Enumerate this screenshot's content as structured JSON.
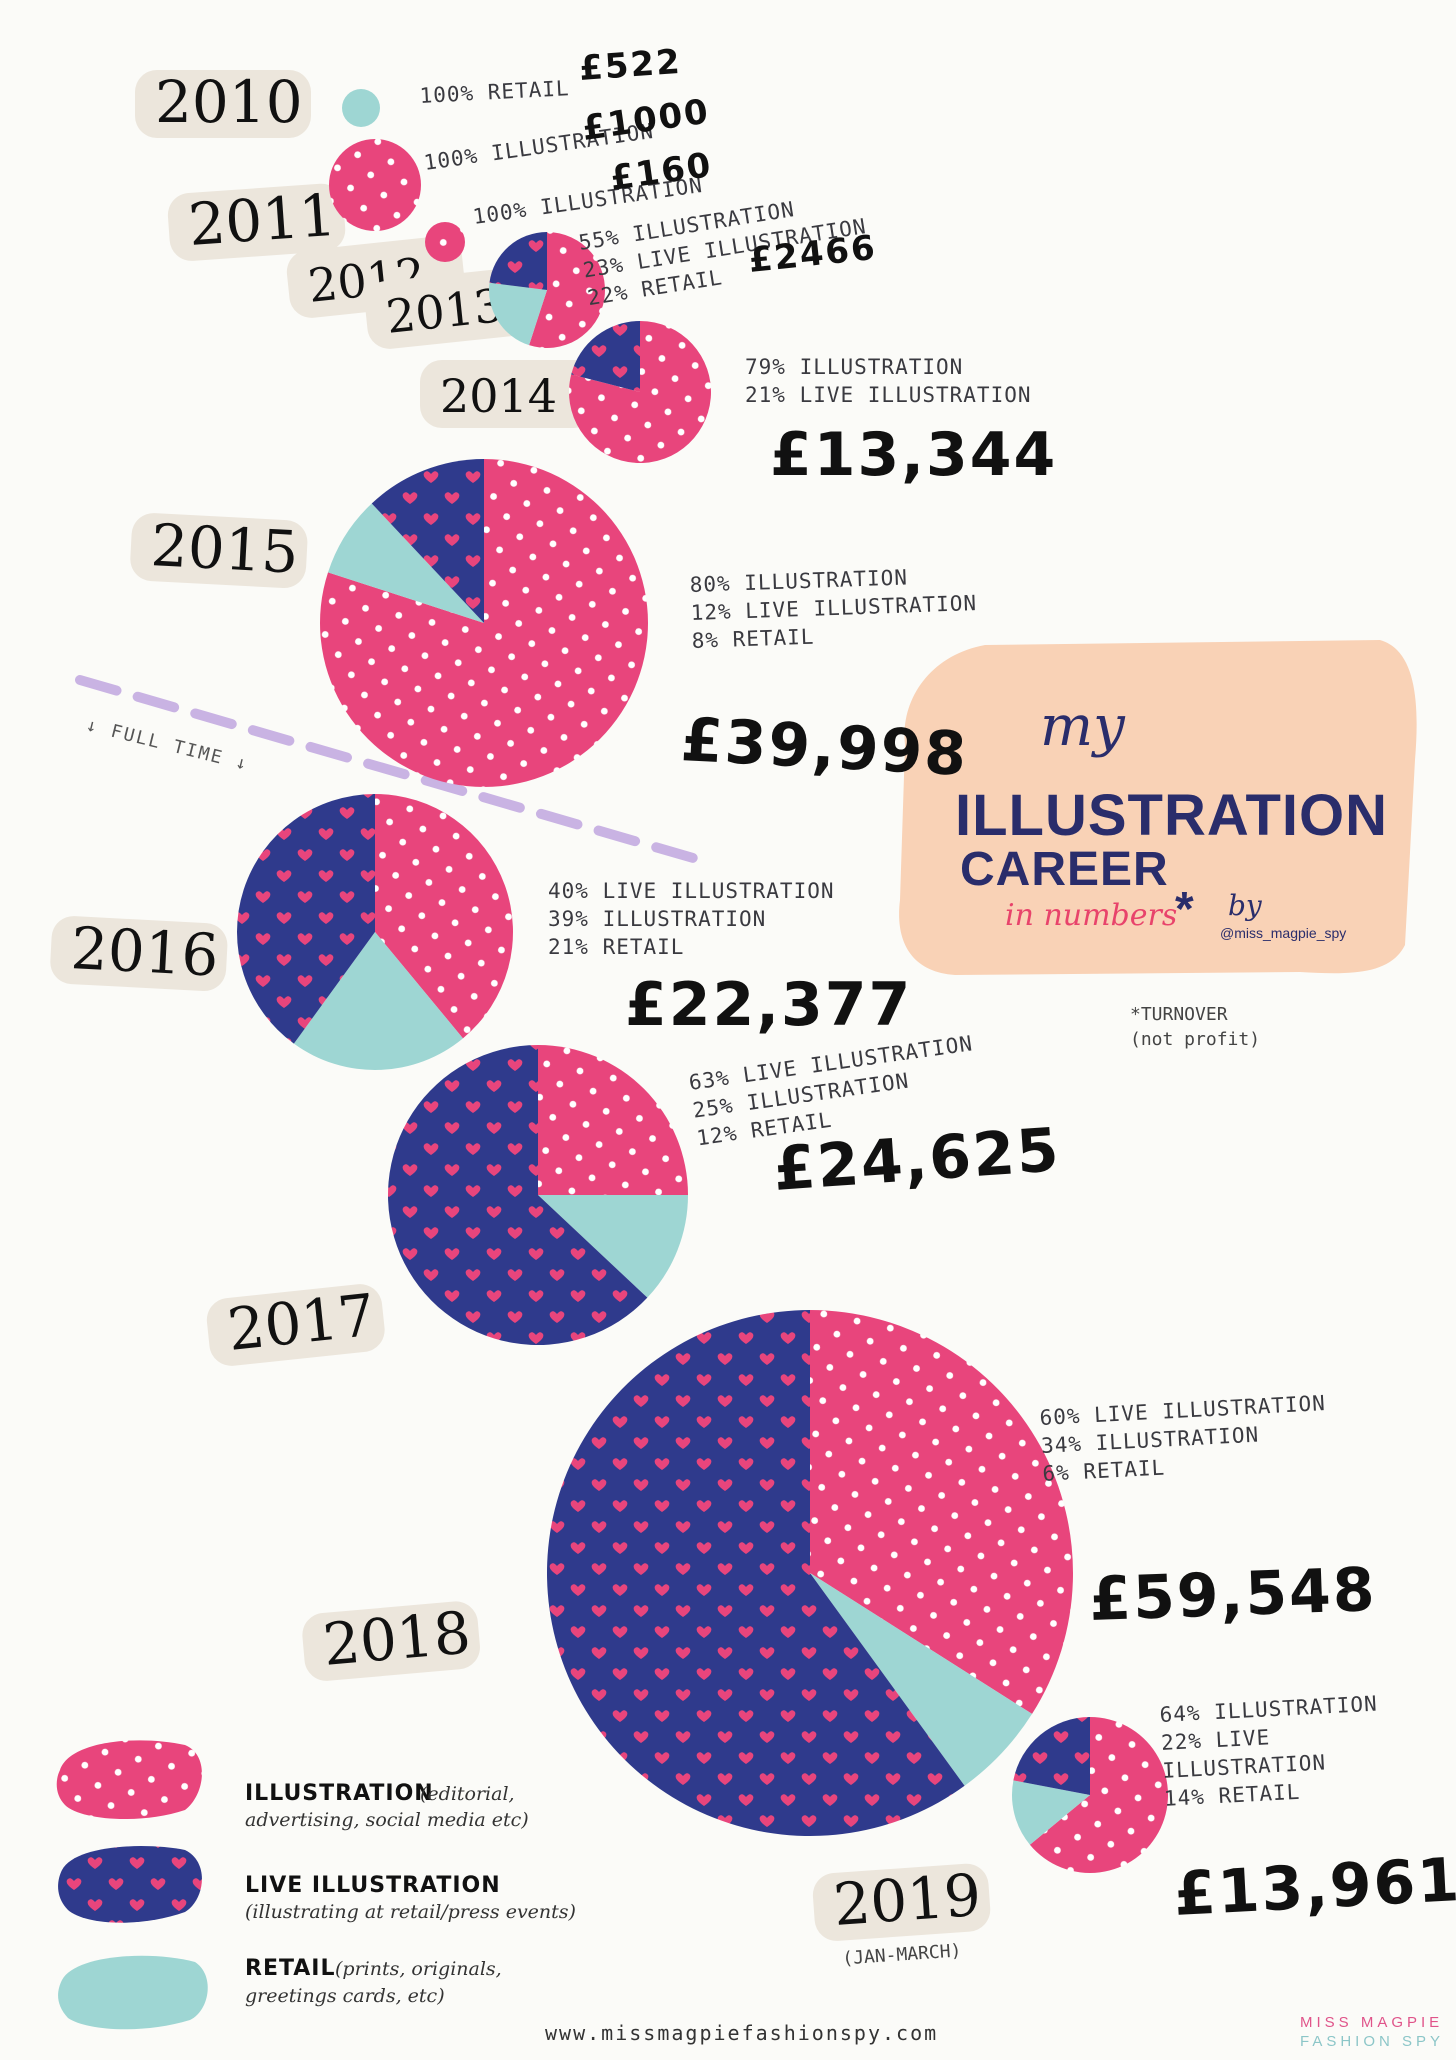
{
  "colors": {
    "illustration": "#e8457c",
    "live_illustration": "#2f3a8c",
    "retail": "#9ed6d3",
    "dots": "#ffffff",
    "hearts": "#e8457c",
    "year_blob": "#ece6dc",
    "title_blob": "#f9d2b6",
    "full_time_line": "#c9b3e3"
  },
  "title": {
    "my": "my",
    "line1": "ILLUSTRATION",
    "line2": "CAREER",
    "line3": "in numbers",
    "star": "*",
    "by": "by",
    "handle": "@miss_magpie_spy",
    "note_line1": "*TURNOVER",
    "note_line2": "(not profit)"
  },
  "full_time": {
    "label": "↓ FULL TIME ↓"
  },
  "legend": {
    "items": [
      {
        "key": "illustration",
        "title": "ILLUSTRATION",
        "desc1": "(editorial,",
        "desc2": "advertising, social media etc)"
      },
      {
        "key": "live_illustration",
        "title": "LIVE ILLUSTRATION",
        "desc1": "(illustrating at retail/press events)",
        "desc2": ""
      },
      {
        "key": "retail",
        "title": "RETAIL",
        "desc1": "(prints, originals,",
        "desc2": "greetings cards, etc)"
      }
    ]
  },
  "footer": {
    "website": "www.missmagpiefashionspy.com",
    "brand_line1": "MISS MAGPIE",
    "brand_line2": "FASHION SPY"
  },
  "chart_data": {
    "type": "pie",
    "series_keys": [
      "illustration",
      "live_illustration",
      "retail"
    ],
    "entries": [
      {
        "year": "2010",
        "year_sub": "",
        "total": "£522",
        "shares": {
          "illustration": 0,
          "live_illustration": 0,
          "retail": 100
        },
        "labels": [
          "100% RETAIL"
        ]
      },
      {
        "year": "2011",
        "year_sub": "",
        "total": "£1000",
        "shares": {
          "illustration": 100,
          "live_illustration": 0,
          "retail": 0
        },
        "labels": [
          "100% ILLUSTRATION"
        ]
      },
      {
        "year": "2012",
        "year_sub": "",
        "total": "£160",
        "shares": {
          "illustration": 100,
          "live_illustration": 0,
          "retail": 0
        },
        "labels": [
          "100% ILLUSTRATION"
        ]
      },
      {
        "year": "2013",
        "year_sub": "",
        "total": "£2466",
        "shares": {
          "illustration": 55,
          "live_illustration": 23,
          "retail": 22
        },
        "labels": [
          "55% ILLUSTRATION",
          "23% LIVE ILLUSTRATION",
          "22% RETAIL"
        ]
      },
      {
        "year": "2014",
        "year_sub": "",
        "total": "£13,344",
        "shares": {
          "illustration": 79,
          "live_illustration": 21,
          "retail": 0
        },
        "labels": [
          "79% ILLUSTRATION",
          "21% LIVE ILLUSTRATION"
        ]
      },
      {
        "year": "2015",
        "year_sub": "",
        "total": "£39,998",
        "shares": {
          "illustration": 80,
          "live_illustration": 12,
          "retail": 8
        },
        "labels": [
          "80% ILLUSTRATION",
          "12% LIVE ILLUSTRATION",
          "8% RETAIL"
        ]
      },
      {
        "year": "2016",
        "year_sub": "",
        "total": "£22,377",
        "shares": {
          "illustration": 39,
          "live_illustration": 40,
          "retail": 21
        },
        "labels": [
          "40% LIVE ILLUSTRATION",
          "39% ILLUSTRATION",
          "21% RETAIL"
        ]
      },
      {
        "year": "2017",
        "year_sub": "",
        "total": "£24,625",
        "shares": {
          "illustration": 25,
          "live_illustration": 63,
          "retail": 12
        },
        "labels": [
          "63% LIVE ILLUSTRATION",
          "25% ILLUSTRATION",
          "12% RETAIL"
        ]
      },
      {
        "year": "2018",
        "year_sub": "",
        "total": "£59,548",
        "shares": {
          "illustration": 34,
          "live_illustration": 60,
          "retail": 6
        },
        "labels": [
          "60% LIVE ILLUSTRATION",
          "34% ILLUSTRATION",
          "6% RETAIL"
        ]
      },
      {
        "year": "2019",
        "year_sub": "(JAN-MARCH)",
        "total": "£13,961",
        "shares": {
          "illustration": 64,
          "live_illustration": 22,
          "retail": 14
        },
        "labels": [
          "64% ILLUSTRATION",
          "22% LIVE",
          "ILLUSTRATION",
          "14% RETAIL"
        ]
      }
    ]
  }
}
